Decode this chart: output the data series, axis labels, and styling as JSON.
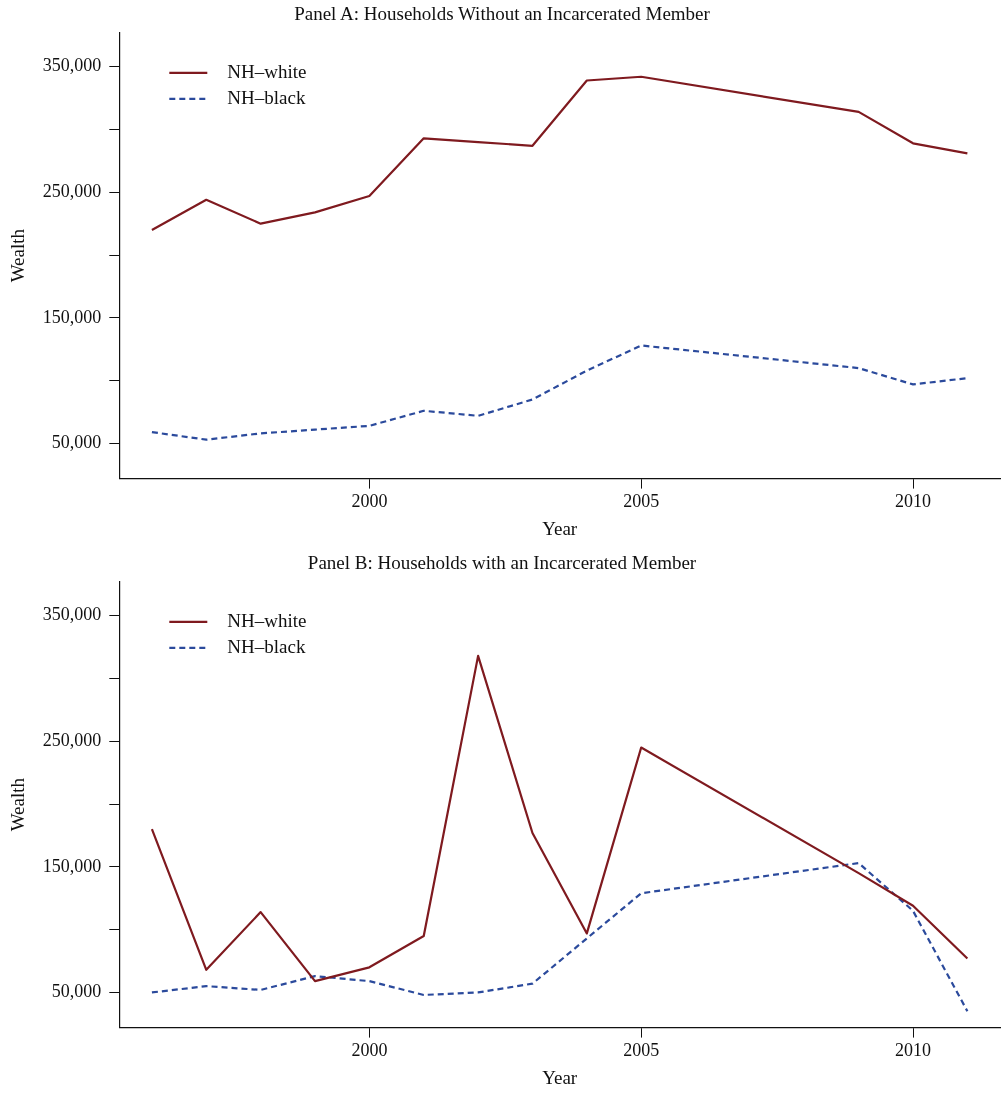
{
  "chart_data": [
    {
      "type": "line",
      "title": "Panel A: Households Without an Incarcerated Member",
      "xlabel": "Year",
      "ylabel": "Wealth",
      "x": [
        1996,
        1997,
        1998,
        1999,
        2000,
        2001,
        2002,
        2003,
        2004,
        2005,
        2009,
        2010,
        2011
      ],
      "xlim": [
        1995.4,
        2011.6
      ],
      "xticks": [
        2000,
        2005,
        2010
      ],
      "ylim": [
        22000,
        377000
      ],
      "yticks": [
        {
          "value": 50000,
          "label": "50,000"
        },
        {
          "value": 100000,
          "label": null
        },
        {
          "value": 150000,
          "label": "150,000"
        },
        {
          "value": 200000,
          "label": null
        },
        {
          "value": 250000,
          "label": "250,000"
        },
        {
          "value": 300000,
          "label": null
        },
        {
          "value": 350000,
          "label": "350,000"
        }
      ],
      "grid": false,
      "legend": "top left",
      "marker": "none",
      "series": [
        {
          "name": "NH–white",
          "color": "#7f1a1f",
          "line_style": "solid",
          "values": [
            220000,
            244000,
            225000,
            234000,
            247000,
            293000,
            290000,
            287000,
            339000,
            342000,
            314000,
            289000,
            281000
          ]
        },
        {
          "name": "NH–black",
          "color": "#2b4a9c",
          "line_style": "dashed",
          "values": [
            59000,
            53000,
            58000,
            61000,
            64000,
            76000,
            72000,
            85000,
            108000,
            128000,
            110000,
            97000,
            102000
          ]
        }
      ]
    },
    {
      "type": "line",
      "title": "Panel B: Households with an Incarcerated Member",
      "xlabel": "Year",
      "ylabel": "Wealth",
      "x": [
        1996,
        1997,
        1998,
        1999,
        2000,
        2001,
        2002,
        2003,
        2004,
        2005,
        2009,
        2010,
        2011
      ],
      "xlim": [
        1995.4,
        2011.6
      ],
      "xticks": [
        2000,
        2005,
        2010
      ],
      "ylim": [
        22000,
        377000
      ],
      "yticks": [
        {
          "value": 50000,
          "label": "50,000"
        },
        {
          "value": 100000,
          "label": null
        },
        {
          "value": 150000,
          "label": "150,000"
        },
        {
          "value": 200000,
          "label": null
        },
        {
          "value": 250000,
          "label": "250,000"
        },
        {
          "value": 300000,
          "label": null
        },
        {
          "value": 350000,
          "label": "350,000"
        }
      ],
      "grid": false,
      "legend": "top left",
      "marker": "none",
      "series": [
        {
          "name": "NH–white",
          "color": "#7f1a1f",
          "line_style": "solid",
          "values": [
            180000,
            68000,
            114000,
            59000,
            70000,
            95000,
            318000,
            177000,
            97000,
            245000,
            145000,
            119000,
            77000
          ]
        },
        {
          "name": "NH–black",
          "color": "#2b4a9c",
          "line_style": "dashed",
          "values": [
            50000,
            55000,
            52000,
            63000,
            59000,
            48000,
            50000,
            57000,
            93000,
            129000,
            153000,
            115000,
            35000
          ]
        }
      ]
    }
  ]
}
